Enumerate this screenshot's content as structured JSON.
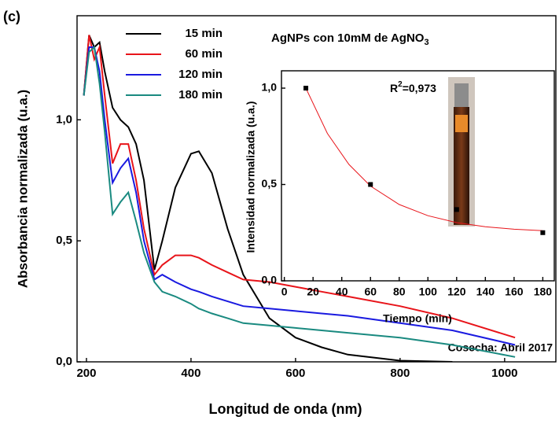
{
  "chart_data": [
    {
      "type": "line",
      "panel_label": "(c)",
      "x_label": "Longitud de onda (nm)",
      "y_label": "Absorbancia normalizada (u.a.)",
      "annotation": "Cosecha: Abril 2017",
      "x": [
        195,
        205,
        215,
        225,
        235,
        250,
        265,
        280,
        295,
        310,
        330,
        345,
        370,
        400,
        415,
        440,
        470,
        500,
        550,
        600,
        650,
        700,
        800,
        900,
        1020
      ],
      "series": [
        {
          "name": "15 min",
          "color": "#000000",
          "values": [
            1.1,
            1.35,
            1.3,
            1.32,
            1.2,
            1.05,
            1.0,
            0.97,
            0.9,
            0.75,
            0.38,
            0.5,
            0.72,
            0.86,
            0.87,
            0.78,
            0.55,
            0.36,
            0.18,
            0.1,
            0.06,
            0.03,
            0.005,
            0.0,
            null
          ]
        },
        {
          "name": "60 min",
          "color": "#e8141a",
          "values": [
            1.1,
            1.35,
            1.25,
            1.3,
            1.1,
            0.82,
            0.9,
            0.9,
            0.75,
            0.55,
            0.36,
            0.4,
            0.44,
            0.44,
            0.43,
            0.4,
            0.37,
            0.34,
            0.33,
            0.31,
            0.29,
            0.27,
            0.23,
            0.18,
            0.1
          ]
        },
        {
          "name": "120 min",
          "color": "#1a1ae0",
          "values": [
            1.1,
            1.3,
            1.3,
            1.2,
            1.0,
            0.74,
            0.8,
            0.84,
            0.7,
            0.5,
            0.34,
            0.36,
            0.33,
            0.3,
            0.29,
            0.27,
            0.25,
            0.23,
            0.22,
            0.21,
            0.2,
            0.19,
            0.16,
            0.13,
            0.07
          ]
        },
        {
          "name": "180 min",
          "color": "#1a8a80",
          "values": [
            1.1,
            1.28,
            1.3,
            1.15,
            0.95,
            0.61,
            0.66,
            0.7,
            0.58,
            0.45,
            0.33,
            0.29,
            0.27,
            0.24,
            0.22,
            0.2,
            0.18,
            0.16,
            0.15,
            0.14,
            0.13,
            0.12,
            0.1,
            0.07,
            0.02
          ]
        }
      ],
      "xlim": [
        182,
        1098
      ],
      "ylim": [
        0,
        1.43
      ],
      "xticks": [
        200,
        400,
        600,
        800,
        1000
      ],
      "yticks": [
        {
          "value": 0.0,
          "label": "0,0"
        },
        {
          "value": 0.5,
          "label": "0,5"
        },
        {
          "value": 1.0,
          "label": "1,0"
        }
      ],
      "legend": "upper left"
    },
    {
      "type": "scatter",
      "title": "AgNPs con 10mM de AgNO",
      "title_sub": "3",
      "annotation": {
        "base": "R",
        "sup": "2",
        "rest": "=0,973"
      },
      "x_label": "Tiempo (min)",
      "y_label": "Intensidad normalizada (u.a.)",
      "x": [
        15,
        60,
        120,
        180
      ],
      "values": [
        1.0,
        0.5,
        0.37,
        0.25
      ],
      "color": "#000000",
      "fit": {
        "color": "#e8141a",
        "x": [
          15,
          30,
          45,
          60,
          80,
          100,
          120,
          140,
          160,
          180
        ],
        "values": [
          1.0,
          0.765,
          0.604,
          0.492,
          0.396,
          0.338,
          0.302,
          0.281,
          0.268,
          0.26
        ]
      },
      "xlim": [
        -2,
        188
      ],
      "ylim": [
        0,
        1.09
      ],
      "xticks": [
        0,
        20,
        40,
        60,
        80,
        100,
        120,
        140,
        160,
        180
      ],
      "yticks": [
        {
          "value": 0.0,
          "label": "0,0"
        },
        {
          "value": 0.5,
          "label": "0,5"
        },
        {
          "value": 1.0,
          "label": "1,0"
        }
      ]
    }
  ]
}
